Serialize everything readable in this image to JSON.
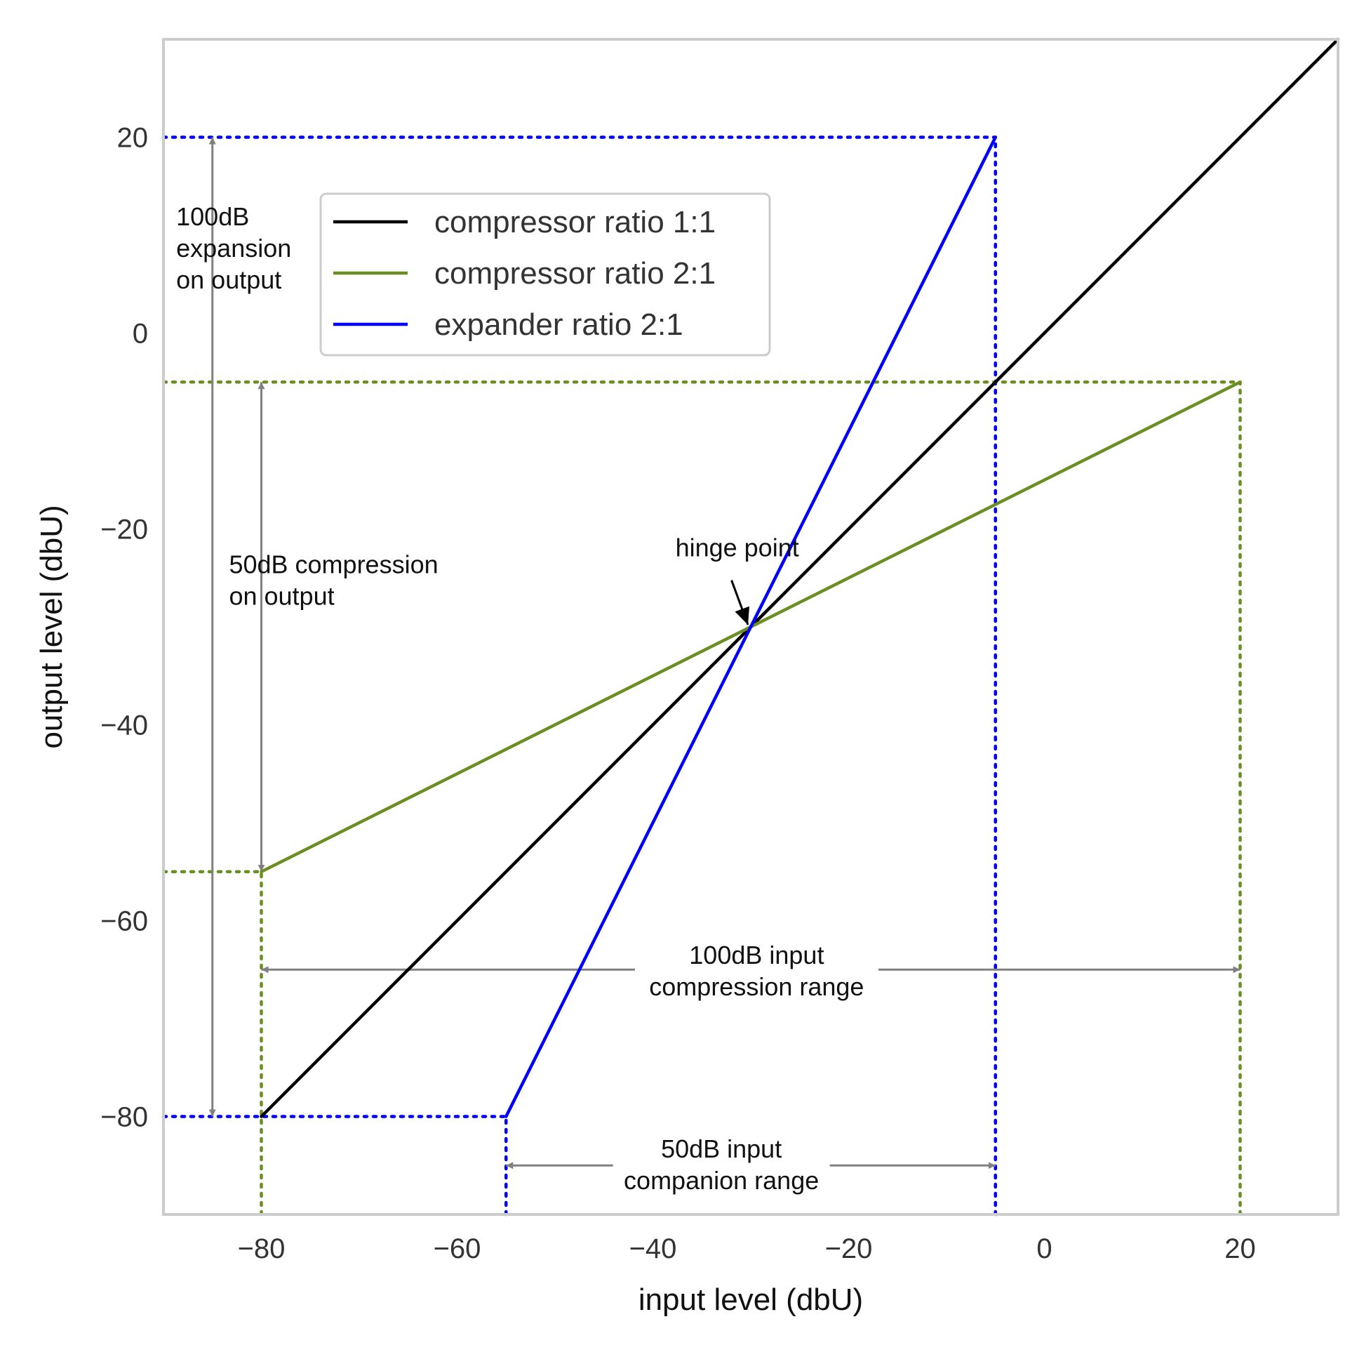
{
  "chart_data": {
    "type": "line",
    "xlabel": "input level (dbU)",
    "ylabel": "output level (dbU)",
    "xlim": [
      -90,
      30
    ],
    "ylim": [
      -90,
      30
    ],
    "xticks": [
      -80,
      -60,
      -40,
      -20,
      0,
      20
    ],
    "yticks": [
      -80,
      -60,
      -40,
      -20,
      0,
      20
    ],
    "xtick_labels": [
      "−80",
      "−60",
      "−40",
      "−20",
      "0",
      "20"
    ],
    "ytick_labels": [
      "−80",
      "−60",
      "−40",
      "−20",
      "0",
      "20"
    ],
    "grid": false,
    "legend_position": "upper-left",
    "series": [
      {
        "name": "compressor ratio 1:1",
        "color": "#000000",
        "x": [
          -80,
          30
        ],
        "y": [
          -80,
          30
        ]
      },
      {
        "name": "compressor ratio 2:1",
        "color": "#6b8e23",
        "x": [
          -80,
          20
        ],
        "y": [
          -55,
          -5
        ]
      },
      {
        "name": "expander ratio 2:1",
        "color": "#0000ff",
        "x": [
          -55,
          -5
        ],
        "y": [
          -80,
          20
        ]
      }
    ],
    "reference_lines": [
      {
        "color": "#0000ff",
        "x": [
          -90,
          -5
        ],
        "y": [
          20,
          20
        ]
      },
      {
        "color": "#0000ff",
        "x": [
          -5,
          -5
        ],
        "y": [
          -90,
          20
        ]
      },
      {
        "color": "#0000ff",
        "x": [
          -90,
          -55
        ],
        "y": [
          -80,
          -80
        ]
      },
      {
        "color": "#0000ff",
        "x": [
          -55,
          -55
        ],
        "y": [
          -90,
          -80
        ]
      },
      {
        "color": "#6b8e23",
        "x": [
          -90,
          20
        ],
        "y": [
          -5,
          -5
        ]
      },
      {
        "color": "#6b8e23",
        "x": [
          20,
          20
        ],
        "y": [
          -90,
          -5
        ]
      },
      {
        "color": "#6b8e23",
        "x": [
          -90,
          -80
        ],
        "y": [
          -55,
          -55
        ]
      },
      {
        "color": "#6b8e23",
        "x": [
          -80,
          -80
        ],
        "y": [
          -90,
          -55
        ]
      }
    ],
    "annotations": [
      {
        "lines": [
          "100dB",
          "expansion",
          "on output"
        ],
        "x": -88.7,
        "y": 11,
        "arrow": {
          "x": -85,
          "y1": 20,
          "y2": -80,
          "both": true
        }
      },
      {
        "lines": [
          "50dB compression",
          "on output"
        ],
        "x": -83.3,
        "y": -24.5,
        "arrow": {
          "x": -80,
          "y1": -5,
          "y2": -55,
          "both": true
        }
      },
      {
        "lines": [
          "hinge point"
        ],
        "x": -37.7,
        "y": -22.8,
        "pointer": {
          "x": -30,
          "y": -30
        }
      },
      {
        "lines": [
          "100dB input",
          "compression range"
        ],
        "x": -29.4,
        "y": -64.4,
        "arrow": {
          "y": -65,
          "x1": -80,
          "x2": 20,
          "both": true
        }
      },
      {
        "lines": [
          "50dB input",
          "companion range"
        ],
        "x": -33,
        "y": -84.2,
        "arrow": {
          "y": -85,
          "x1": -55,
          "x2": -5,
          "both": true
        }
      }
    ]
  }
}
